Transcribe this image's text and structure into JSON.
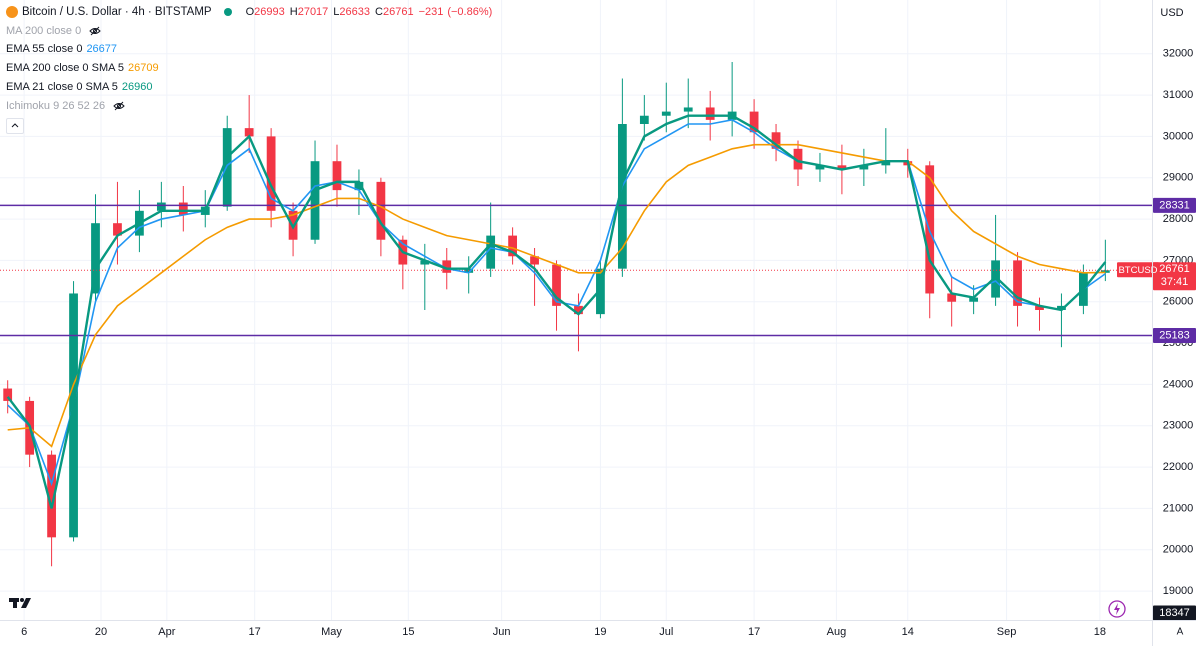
{
  "chart_data": {
    "type": "candlestick",
    "title": "Bitcoin / U.S. Dollar · 4h · BITSTAMP",
    "ohlc": [
      {
        "label": "O",
        "value": 26993
      },
      {
        "label": "H",
        "value": 27017
      },
      {
        "label": "L",
        "value": 26633
      },
      {
        "label": "C",
        "value": 26761
      }
    ],
    "change": {
      "value": -231,
      "label": "−231"
    },
    "change_percent": {
      "value": -0.86,
      "label": "(−0.86%)"
    },
    "currency": "USD",
    "symbol": "BTCUSD",
    "last_price": 26761,
    "countdown": "37:41",
    "cursor_price": 18347,
    "up_color": "#089981",
    "down_color": "#f23645",
    "x": [
      2,
      6,
      10,
      14,
      18,
      22,
      26,
      30,
      34,
      38,
      42,
      46,
      50,
      54,
      58,
      62,
      66,
      70,
      74,
      78,
      82,
      86,
      90,
      94,
      98,
      102,
      106,
      110,
      114,
      118,
      122,
      126,
      130,
      134,
      138,
      142,
      146,
      150,
      154,
      158,
      162,
      166,
      170,
      174,
      178,
      182,
      186,
      190,
      194,
      198,
      202
    ],
    "open": [
      23900,
      23600,
      22300,
      20300,
      26200,
      27900,
      27600,
      28200,
      28400,
      28100,
      28300,
      30200,
      30000,
      28200,
      27500,
      29400,
      28700,
      28900,
      27500,
      26900,
      27000,
      26700,
      26800,
      27600,
      27100,
      26900,
      25900,
      25700,
      26800,
      30300,
      30500,
      30600,
      30700,
      30400,
      30600,
      30100,
      29700,
      29200,
      29300,
      29200,
      29300,
      29400,
      29300,
      26200,
      26000,
      26100,
      27000,
      25900,
      25800,
      25900,
      26700
    ],
    "high": [
      24100,
      23700,
      22400,
      26500,
      28600,
      28900,
      28700,
      28900,
      28800,
      28700,
      30500,
      31000,
      30200,
      28400,
      29900,
      29800,
      29200,
      29000,
      27600,
      27400,
      27300,
      27100,
      28400,
      27800,
      27300,
      27000,
      26200,
      27000,
      31400,
      31000,
      31300,
      31400,
      31100,
      31800,
      30900,
      30300,
      29900,
      29600,
      29800,
      29700,
      30200,
      29700,
      29400,
      26600,
      26400,
      28100,
      27200,
      26100,
      26200,
      26900,
      27500
    ],
    "low": [
      23300,
      22000,
      19600,
      20200,
      26000,
      26900,
      27200,
      27800,
      27700,
      27800,
      28200,
      29600,
      27800,
      27100,
      27400,
      28300,
      28100,
      27100,
      26300,
      25800,
      26300,
      26200,
      26600,
      26900,
      25900,
      25300,
      24800,
      25600,
      26600,
      29900,
      30100,
      30200,
      29900,
      30000,
      29700,
      29400,
      28800,
      28900,
      28600,
      28800,
      29100,
      29000,
      25600,
      25400,
      25700,
      25900,
      25400,
      25300,
      24900,
      25700,
      26500
    ],
    "close": [
      23600,
      22300,
      20300,
      26200,
      27900,
      27600,
      28200,
      28400,
      28100,
      28300,
      30200,
      30000,
      28200,
      27500,
      29400,
      28700,
      28900,
      27500,
      26900,
      27000,
      26700,
      26800,
      27600,
      27100,
      26900,
      25900,
      25700,
      26800,
      30300,
      30500,
      30600,
      30700,
      30400,
      30600,
      30100,
      29700,
      29200,
      29300,
      29200,
      29300,
      29400,
      29300,
      26200,
      26000,
      26100,
      27000,
      25900,
      25800,
      25900,
      26700,
      26761
    ],
    "series": [
      {
        "name": "MA 200 close 0",
        "visible": false
      },
      {
        "name": "EMA 55 close 0",
        "color": "#2196f3",
        "last_value": 26677,
        "visible": true,
        "values": [
          23500,
          23000,
          21600,
          23500,
          26000,
          27300,
          27800,
          28000,
          28100,
          28200,
          29300,
          29700,
          28500,
          28200,
          28800,
          28900,
          28700,
          27900,
          27400,
          27100,
          26800,
          26700,
          27300,
          27200,
          26700,
          26000,
          25900,
          27000,
          28800,
          29700,
          30000,
          30300,
          30300,
          30400,
          30100,
          29700,
          29400,
          29300,
          29200,
          29300,
          29400,
          29400,
          27700,
          26600,
          26300,
          26500,
          26000,
          25900,
          25800,
          26300,
          26677
        ]
      },
      {
        "name": "EMA 200 close 0 SMA 5",
        "color": "#f59b00",
        "last_value": 26709,
        "visible": true,
        "values": [
          22900,
          22950,
          22500,
          24000,
          25200,
          25900,
          26300,
          26700,
          27100,
          27500,
          27800,
          28000,
          28000,
          28100,
          28300,
          28500,
          28500,
          28300,
          28000,
          27800,
          27600,
          27500,
          27400,
          27300,
          27100,
          26900,
          26700,
          26700,
          27300,
          28200,
          28900,
          29300,
          29500,
          29700,
          29800,
          29800,
          29800,
          29700,
          29600,
          29500,
          29400,
          29400,
          29000,
          28200,
          27700,
          27400,
          27100,
          26900,
          26800,
          26700,
          26709
        ]
      },
      {
        "name": "EMA 21 close 0 SMA 5",
        "color": "#089981",
        "last_value": 26960,
        "visible": true,
        "values": [
          23700,
          23000,
          21000,
          23500,
          26800,
          27600,
          27900,
          28200,
          28200,
          28200,
          29500,
          30000,
          28800,
          27800,
          28700,
          28900,
          28900,
          27900,
          27200,
          27000,
          26800,
          26800,
          27400,
          27200,
          26800,
          26100,
          25700,
          26300,
          28900,
          30000,
          30300,
          30500,
          30500,
          30500,
          30200,
          29800,
          29400,
          29300,
          29200,
          29300,
          29400,
          29400,
          27000,
          26200,
          26100,
          26600,
          26100,
          25900,
          25800,
          26300,
          26960
        ]
      },
      {
        "name": "Ichimoku 9 26 52 26",
        "visible": false
      }
    ],
    "hlines": [
      {
        "value": 28331,
        "color": "#5e2ca5"
      },
      {
        "value": 25183,
        "color": "#5e2ca5"
      }
    ],
    "xlim": [
      0.6,
      210.5
    ],
    "ylim": [
      18300,
      33300
    ],
    "xticks": [
      {
        "value": 5,
        "label": "6"
      },
      {
        "value": 19,
        "label": "20"
      },
      {
        "value": 31,
        "label": "Apr"
      },
      {
        "value": 47,
        "label": "17"
      },
      {
        "value": 61,
        "label": "May"
      },
      {
        "value": 75,
        "label": "15"
      },
      {
        "value": 92,
        "label": "Jun"
      },
      {
        "value": 110,
        "label": "19"
      },
      {
        "value": 122,
        "label": "Jul"
      },
      {
        "value": 138,
        "label": "17"
      },
      {
        "value": 153,
        "label": "Aug"
      },
      {
        "value": 166,
        "label": "14"
      },
      {
        "value": 184,
        "label": "Sep"
      },
      {
        "value": 201,
        "label": "18"
      }
    ],
    "yticks": [
      19000,
      20000,
      21000,
      22000,
      23000,
      24000,
      25000,
      26000,
      27000,
      28000,
      29000,
      30000,
      31000,
      32000
    ],
    "grid": true
  }
}
